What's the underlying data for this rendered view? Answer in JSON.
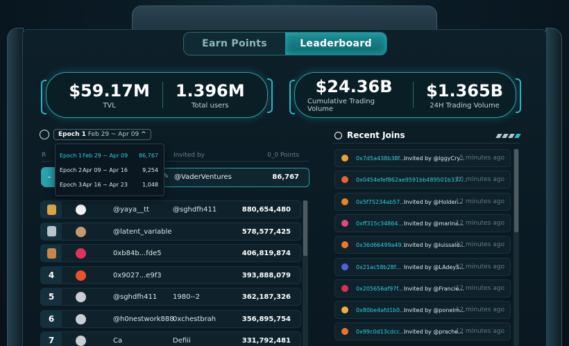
{
  "tabs": {
    "earn": "Earn Points",
    "leaderboard": "Leaderboard"
  },
  "stats": [
    {
      "value": "$59.17M",
      "label": "TVL"
    },
    {
      "value": "1.396M",
      "label": "Total users"
    },
    {
      "value": "$24.36B",
      "label": "Cumulative Trading Volume"
    },
    {
      "value": "$1.365B",
      "label": "24H Trading Volume"
    }
  ],
  "epoch": {
    "name": "Epoch 1",
    "dates": "Feb 29 ~ Apr 09",
    "arrow": "^"
  },
  "dropdown": [
    {
      "name": "Epoch 1",
      "dates": "Feb 29 ~ Apr 09",
      "count": "86,767",
      "selected": true
    },
    {
      "name": "Epoch 2",
      "dates": "Apr 09 ~ Apr 16",
      "count": "9,254"
    },
    {
      "name": "Epoch 3",
      "dates": "Apr 16 ~ Apr 23",
      "count": "1,048"
    }
  ],
  "leaderboard": {
    "head": {
      "rank": "R",
      "invited_by": "Invited by",
      "points": "0_0 Points"
    },
    "my_row": {
      "rank": "-",
      "invited_by": "@VaderVentures",
      "points": "86,767"
    },
    "rows": [
      {
        "rank": "",
        "medal": "gold",
        "avatar": "#f2f2f2",
        "name": "@yaya__tt",
        "invited_by": "@sghdfh411",
        "points": "880,654,480"
      },
      {
        "rank": "",
        "medal": "silver",
        "avatar": "#c49a6c",
        "name": "@latent_variable",
        "invited_by": "",
        "points": "578,577,425"
      },
      {
        "rank": "",
        "medal": "bronze",
        "avatar": "#e0325a",
        "name": "0xb84b...fde5",
        "invited_by": "",
        "points": "406,819,874"
      },
      {
        "rank": "4",
        "medal": "",
        "avatar": "#e9532c",
        "name": "0x9027...e9f3",
        "invited_by": "",
        "points": "393,888,079"
      },
      {
        "rank": "5",
        "medal": "",
        "avatar": "#c8ced3",
        "name": "@sghdfh411",
        "invited_by": "1980--2",
        "points": "362,187,326"
      },
      {
        "rank": "6",
        "medal": "",
        "avatar": "#c8ced3",
        "name": "@h0nestwork888",
        "invited_by": "0xchestbrah",
        "points": "356,895,754"
      },
      {
        "rank": "7",
        "medal": "",
        "avatar": "#c8ced3",
        "name": "Ca",
        "invited_by": "Defiii",
        "points": "331,792,481"
      }
    ]
  },
  "recent_joins": {
    "title": "Recent Joins",
    "items": [
      {
        "address": "0x7d5a438b38f...",
        "invited": "Invited by @lggyCry...",
        "time": "5 minutes ago",
        "color": "#f0a030"
      },
      {
        "address": "0x0454efef862ae9591bb489501b337...",
        "invited": "",
        "time": "10 minutes ago",
        "color": "#f06030"
      },
      {
        "address": "0x5f75234ab57...",
        "invited": "Invited by @Holder...",
        "time": "12 minutes ago",
        "color": "#f08020"
      },
      {
        "address": "0xff315c34864...",
        "invited": "Invited by @marina...",
        "time": "12 minutes ago",
        "color": "#e04a7a"
      },
      {
        "address": "0x36d66499a49...",
        "invited": "Invited by @luissald...",
        "time": "12 minutes ago",
        "color": "#f07a20"
      },
      {
        "address": "0x21ac58b28f...",
        "invited": "Invited by @LAdeyS...",
        "time": "12 minutes ago",
        "color": "#5060e0"
      },
      {
        "address": "0x205656af97f...",
        "invited": "Invited by @Francie...",
        "time": "12 minutes ago",
        "color": "#e03050"
      },
      {
        "address": "0x80be4afd1b0...",
        "invited": "Invited by @ponelm...",
        "time": "12 minutes ago",
        "color": "#f0b040"
      },
      {
        "address": "0x99c0d13cdcc...",
        "invited": "Invited by @prache...",
        "time": "12 minutes ago",
        "color": "#f07030"
      }
    ]
  }
}
